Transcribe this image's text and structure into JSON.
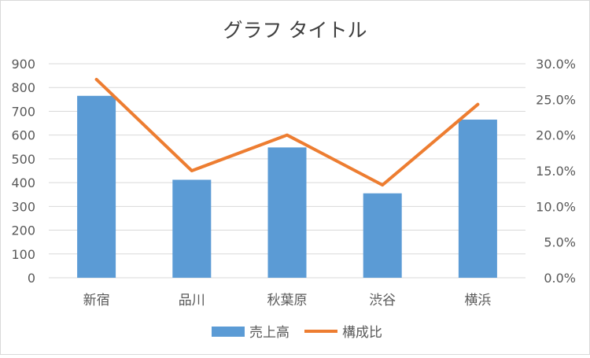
{
  "chart_data": {
    "type": "bar",
    "title": "グラフ タイトル",
    "categories": [
      "新宿",
      "品川",
      "秋葉原",
      "渋谷",
      "横浜"
    ],
    "series": [
      {
        "name": "売上高",
        "type": "bar",
        "axis": "left",
        "values": [
          765,
          412,
          548,
          355,
          665
        ],
        "color": "#5b9bd5"
      },
      {
        "name": "構成比",
        "type": "line",
        "axis": "right",
        "values": [
          0.278,
          0.15,
          0.2,
          0.13,
          0.243
        ],
        "color": "#ed7d31"
      }
    ],
    "y_left": {
      "min": 0,
      "max": 900,
      "ticks": [
        0,
        100,
        200,
        300,
        400,
        500,
        600,
        700,
        800,
        900
      ],
      "tick_labels": [
        "0",
        "100",
        "200",
        "300",
        "400",
        "500",
        "600",
        "700",
        "800",
        "900"
      ]
    },
    "y_right": {
      "min": 0,
      "max": 0.3,
      "ticks": [
        0,
        0.05,
        0.1,
        0.15,
        0.2,
        0.25,
        0.3
      ],
      "tick_labels": [
        "0.0%",
        "5.0%",
        "10.0%",
        "15.0%",
        "20.0%",
        "25.0%",
        "30.0%"
      ]
    },
    "grid": true,
    "legend": "bottom",
    "colors": {
      "grid": "#d9d9d9",
      "text": "#595959",
      "title": "#404040"
    }
  }
}
